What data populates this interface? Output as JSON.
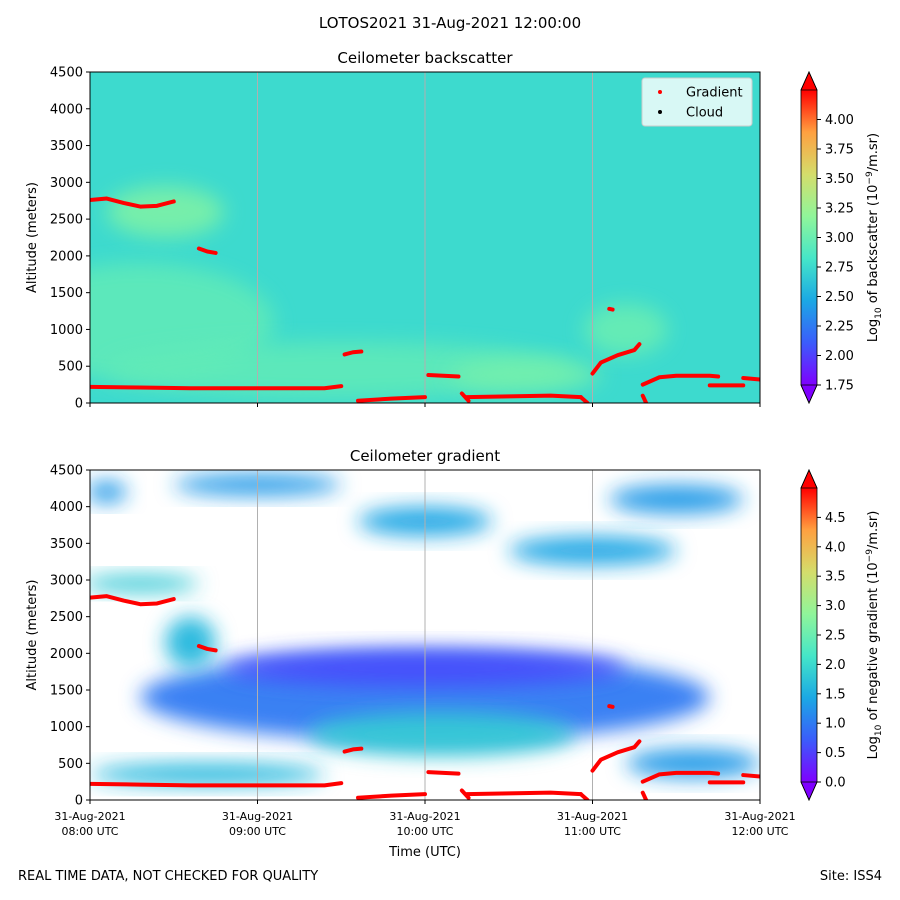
{
  "suptitle": "LOTOS2021 31-Aug-2021 12:00:00",
  "footer": {
    "left": "REAL TIME DATA, NOT CHECKED FOR QUALITY",
    "right": "Site: ISS4"
  },
  "colors": {
    "gradient_marker": "#ff0000",
    "cloud_marker": "#000000",
    "backscatter_background": "#3fe0c8",
    "colormap": [
      "#7f00ff",
      "#3b5cfb",
      "#1ba8e4",
      "#45e6c8",
      "#90f59a",
      "#d4dd6b",
      "#ffa040",
      "#ff0000"
    ]
  },
  "chart_data": [
    {
      "type": "heatmap",
      "title": "Ceilometer backscatter",
      "xlabel": "",
      "ylabel": "Altitude (meters)",
      "ylim": [
        0,
        4500
      ],
      "yticks": [
        "0",
        "500",
        "1000",
        "1500",
        "2000",
        "2500",
        "3000",
        "3500",
        "4000",
        "4500"
      ],
      "xlim": [
        "31-Aug-2021 08:00 UTC",
        "31-Aug-2021 12:00 UTC"
      ],
      "x_tick_labels_shown": false,
      "grid": "vertical",
      "legend": {
        "placement": "top-right",
        "entries": [
          {
            "label": "Gradient",
            "color": "#ff0000"
          },
          {
            "label": "Cloud",
            "color": "#000000"
          }
        ]
      },
      "colorbar": {
        "label_prefix": "Log",
        "label_sub": "10",
        "label_mid": " of backscatter (10",
        "label_sup": "−9",
        "label_suffix": "/m.sr)",
        "range": [
          1.75,
          4.25
        ],
        "ticks": [
          "1.75",
          "2.00",
          "2.25",
          "2.50",
          "2.75",
          "3.00",
          "3.25",
          "3.50",
          "3.75",
          "4.00"
        ]
      },
      "background_value": 2.75,
      "regions": [
        {
          "cx": 8.45,
          "cy": 2600,
          "rx": 0.35,
          "ry": 350,
          "value": 3.1
        },
        {
          "cx": 8.3,
          "cy": 1100,
          "rx": 0.8,
          "ry": 800,
          "value": 2.95
        },
        {
          "cx": 9.5,
          "cy": 450,
          "rx": 1.4,
          "ry": 380,
          "value": 2.95
        },
        {
          "cx": 10.6,
          "cy": 380,
          "rx": 0.45,
          "ry": 220,
          "value": 3.05
        },
        {
          "cx": 11.2,
          "cy": 1000,
          "rx": 0.25,
          "ry": 350,
          "value": 3.0
        }
      ],
      "gradient_series": [
        {
          "name": "Gradient",
          "x": [
            8.0,
            8.1,
            8.2,
            8.3,
            8.4,
            8.5
          ],
          "y": [
            2760,
            2780,
            2720,
            2670,
            2680,
            2740
          ]
        },
        {
          "name": "Gradient",
          "x": [
            8.65,
            8.7,
            8.75
          ],
          "y": [
            2100,
            2060,
            2040
          ]
        },
        {
          "name": "Gradient",
          "x": [
            8.0,
            8.3,
            8.6,
            9.0,
            9.4,
            9.5
          ],
          "y": [
            220,
            210,
            200,
            200,
            200,
            230
          ]
        },
        {
          "name": "Gradient",
          "x": [
            9.52,
            9.57,
            9.62
          ],
          "y": [
            660,
            690,
            700
          ]
        },
        {
          "name": "Gradient",
          "x": [
            9.6,
            9.8,
            10.0
          ],
          "y": [
            30,
            60,
            80
          ]
        },
        {
          "name": "Gradient",
          "x": [
            10.02,
            10.2
          ],
          "y": [
            380,
            360
          ]
        },
        {
          "name": "Gradient",
          "x": [
            10.22,
            10.26
          ],
          "y": [
            130,
            30
          ]
        },
        {
          "name": "Gradient",
          "x": [
            10.25,
            10.5,
            10.75,
            10.93
          ],
          "y": [
            80,
            90,
            100,
            80
          ]
        },
        {
          "name": "Gradient",
          "x": [
            10.93,
            10.97
          ],
          "y": [
            80,
            0
          ]
        },
        {
          "name": "Gradient",
          "x": [
            11.0,
            11.05,
            11.15,
            11.25,
            11.28
          ],
          "y": [
            400,
            550,
            650,
            720,
            800
          ]
        },
        {
          "name": "Gradient",
          "x": [
            11.1,
            11.12
          ],
          "y": [
            1280,
            1270
          ]
        },
        {
          "name": "Gradient",
          "x": [
            11.3,
            11.32
          ],
          "y": [
            100,
            0
          ]
        },
        {
          "name": "Gradient",
          "x": [
            11.3,
            11.4,
            11.5,
            11.7,
            11.75
          ],
          "y": [
            250,
            350,
            370,
            370,
            360
          ]
        },
        {
          "name": "Gradient",
          "x": [
            11.7,
            11.9
          ],
          "y": [
            240,
            240
          ]
        },
        {
          "name": "Gradient",
          "x": [
            11.9,
            12.0
          ],
          "y": [
            340,
            320
          ]
        }
      ]
    },
    {
      "type": "heatmap",
      "title": "Ceilometer gradient",
      "xlabel": "Time (UTC)",
      "ylabel": "Altitude (meters)",
      "ylim": [
        0,
        4500
      ],
      "yticks": [
        "0",
        "500",
        "1000",
        "1500",
        "2000",
        "2500",
        "3000",
        "3500",
        "4000",
        "4500"
      ],
      "x": [
        8,
        9,
        10,
        11,
        12
      ],
      "xticks": [
        {
          "date": "31-Aug-2021",
          "time": "08:00 UTC"
        },
        {
          "date": "31-Aug-2021",
          "time": "09:00 UTC"
        },
        {
          "date": "31-Aug-2021",
          "time": "10:00 UTC"
        },
        {
          "date": "31-Aug-2021",
          "time": "11:00 UTC"
        },
        {
          "date": "31-Aug-2021",
          "time": "12:00 UTC"
        }
      ],
      "grid": "vertical",
      "colorbar": {
        "label_prefix": "Log",
        "label_sub": "10",
        "label_mid": " of negative gradient (10",
        "label_sup": "−9",
        "label_suffix": "/m.sr)",
        "range": [
          0,
          5
        ],
        "ticks": [
          "0.0",
          "0.5",
          "1.0",
          "1.5",
          "2.0",
          "2.5",
          "3.0",
          "3.5",
          "4.0",
          "4.5"
        ]
      },
      "background_value": null,
      "regions": [
        {
          "cx": 10.0,
          "cy": 1400,
          "rx": 1.7,
          "ry": 600,
          "value": 1.0
        },
        {
          "cx": 10.0,
          "cy": 1800,
          "rx": 1.2,
          "ry": 250,
          "value": 0.6
        },
        {
          "cx": 10.1,
          "cy": 900,
          "rx": 0.8,
          "ry": 300,
          "value": 1.8
        },
        {
          "cx": 8.6,
          "cy": 2150,
          "rx": 0.15,
          "ry": 350,
          "value": 1.6
        },
        {
          "cx": 8.3,
          "cy": 2950,
          "rx": 0.35,
          "ry": 120,
          "value": 1.8
        },
        {
          "cx": 8.1,
          "cy": 4200,
          "rx": 0.12,
          "ry": 150,
          "value": 1.3
        },
        {
          "cx": 9.0,
          "cy": 4300,
          "rx": 0.5,
          "ry": 150,
          "value": 1.3
        },
        {
          "cx": 10.0,
          "cy": 3800,
          "rx": 0.4,
          "ry": 200,
          "value": 1.4
        },
        {
          "cx": 11.0,
          "cy": 3400,
          "rx": 0.5,
          "ry": 200,
          "value": 1.4
        },
        {
          "cx": 11.5,
          "cy": 4100,
          "rx": 0.4,
          "ry": 200,
          "value": 1.3
        },
        {
          "cx": 11.6,
          "cy": 500,
          "rx": 0.4,
          "ry": 200,
          "value": 1.3
        },
        {
          "cx": 8.7,
          "cy": 350,
          "rx": 0.7,
          "ry": 150,
          "value": 1.6
        }
      ],
      "gradient_series": [
        {
          "name": "Gradient",
          "x": [
            8.0,
            8.1,
            8.2,
            8.3,
            8.4,
            8.5
          ],
          "y": [
            2760,
            2780,
            2720,
            2670,
            2680,
            2740
          ]
        },
        {
          "name": "Gradient",
          "x": [
            8.65,
            8.7,
            8.75
          ],
          "y": [
            2100,
            2060,
            2040
          ]
        },
        {
          "name": "Gradient",
          "x": [
            8.0,
            8.3,
            8.6,
            9.0,
            9.4,
            9.5
          ],
          "y": [
            220,
            210,
            200,
            200,
            200,
            230
          ]
        },
        {
          "name": "Gradient",
          "x": [
            9.52,
            9.57,
            9.62
          ],
          "y": [
            660,
            690,
            700
          ]
        },
        {
          "name": "Gradient",
          "x": [
            9.6,
            9.8,
            10.0
          ],
          "y": [
            30,
            60,
            80
          ]
        },
        {
          "name": "Gradient",
          "x": [
            10.02,
            10.2
          ],
          "y": [
            380,
            360
          ]
        },
        {
          "name": "Gradient",
          "x": [
            10.22,
            10.26
          ],
          "y": [
            130,
            30
          ]
        },
        {
          "name": "Gradient",
          "x": [
            10.25,
            10.5,
            10.75,
            10.93
          ],
          "y": [
            80,
            90,
            100,
            80
          ]
        },
        {
          "name": "Gradient",
          "x": [
            10.93,
            10.97
          ],
          "y": [
            80,
            0
          ]
        },
        {
          "name": "Gradient",
          "x": [
            11.0,
            11.05,
            11.15,
            11.25,
            11.28
          ],
          "y": [
            400,
            550,
            650,
            720,
            800
          ]
        },
        {
          "name": "Gradient",
          "x": [
            11.1,
            11.12
          ],
          "y": [
            1280,
            1270
          ]
        },
        {
          "name": "Gradient",
          "x": [
            11.3,
            11.32
          ],
          "y": [
            100,
            0
          ]
        },
        {
          "name": "Gradient",
          "x": [
            11.3,
            11.4,
            11.5,
            11.7,
            11.75
          ],
          "y": [
            250,
            350,
            370,
            370,
            360
          ]
        },
        {
          "name": "Gradient",
          "x": [
            11.7,
            11.9
          ],
          "y": [
            240,
            240
          ]
        },
        {
          "name": "Gradient",
          "x": [
            11.9,
            12.0
          ],
          "y": [
            340,
            320
          ]
        }
      ]
    }
  ]
}
